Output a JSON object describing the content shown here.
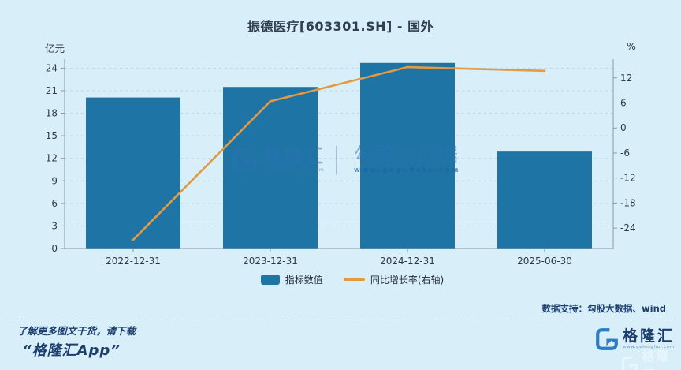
{
  "title": "振德医疗[603301.SH] - 国外",
  "axes": {
    "left_unit": "亿元",
    "right_unit": "%"
  },
  "legend": {
    "items": [
      {
        "label": "指标数值",
        "type": "bar"
      },
      {
        "label": "同比增长率(右轴)",
        "type": "line"
      }
    ]
  },
  "watermark": {
    "brand": "格隆汇",
    "brand_url": "www.gelonghui.com",
    "partner": "勾股大数据",
    "partner_url": "www.gogudata.com"
  },
  "footer": {
    "data_support": "数据支持：勾股大数据、wind",
    "promo_line1": "了解更多图文干货，请下载",
    "promo_line2": "“格隆汇App”"
  },
  "logo": {
    "brand": "格隆汇",
    "url": "www.gelonghui.com"
  },
  "colors": {
    "background": "#d8eff9",
    "bar": "#1f74a6",
    "line": "#e39a40",
    "axis": "#8a9aa6",
    "grid": "#bdd6e2",
    "tick_text": "#2f3a46",
    "navy": "#1c3e6e",
    "brand_blue": "#2b7cc2"
  },
  "chart_data": {
    "type": "bar+line combo",
    "title": "振德医疗[603301.SH] - 国外",
    "categories": [
      "2022-12-31",
      "2023-12-31",
      "2024-12-31",
      "2025-06-30"
    ],
    "series": [
      {
        "name": "指标数值",
        "type": "bar",
        "axis": "left",
        "unit": "亿元",
        "values": [
          20.1,
          21.5,
          24.7,
          12.9
        ]
      },
      {
        "name": "同比增长率(右轴)",
        "type": "line",
        "axis": "right",
        "unit": "%",
        "values": [
          -26.8,
          6.4,
          14.6,
          13.7
        ]
      }
    ],
    "left_axis": {
      "label": "亿元",
      "min": 0,
      "max": 25.2,
      "tick_step": 3,
      "ticks": [
        0,
        3,
        6,
        9,
        12,
        15,
        18,
        21,
        24
      ]
    },
    "right_axis": {
      "label": "%",
      "min": -28.9,
      "max": 16.5,
      "tick_step": 6,
      "ticks": [
        -24,
        -18,
        -12,
        -6,
        0,
        6,
        12
      ]
    },
    "grid": "horizontal dashed lines at left-axis ticks",
    "legend_position": "bottom-center"
  }
}
